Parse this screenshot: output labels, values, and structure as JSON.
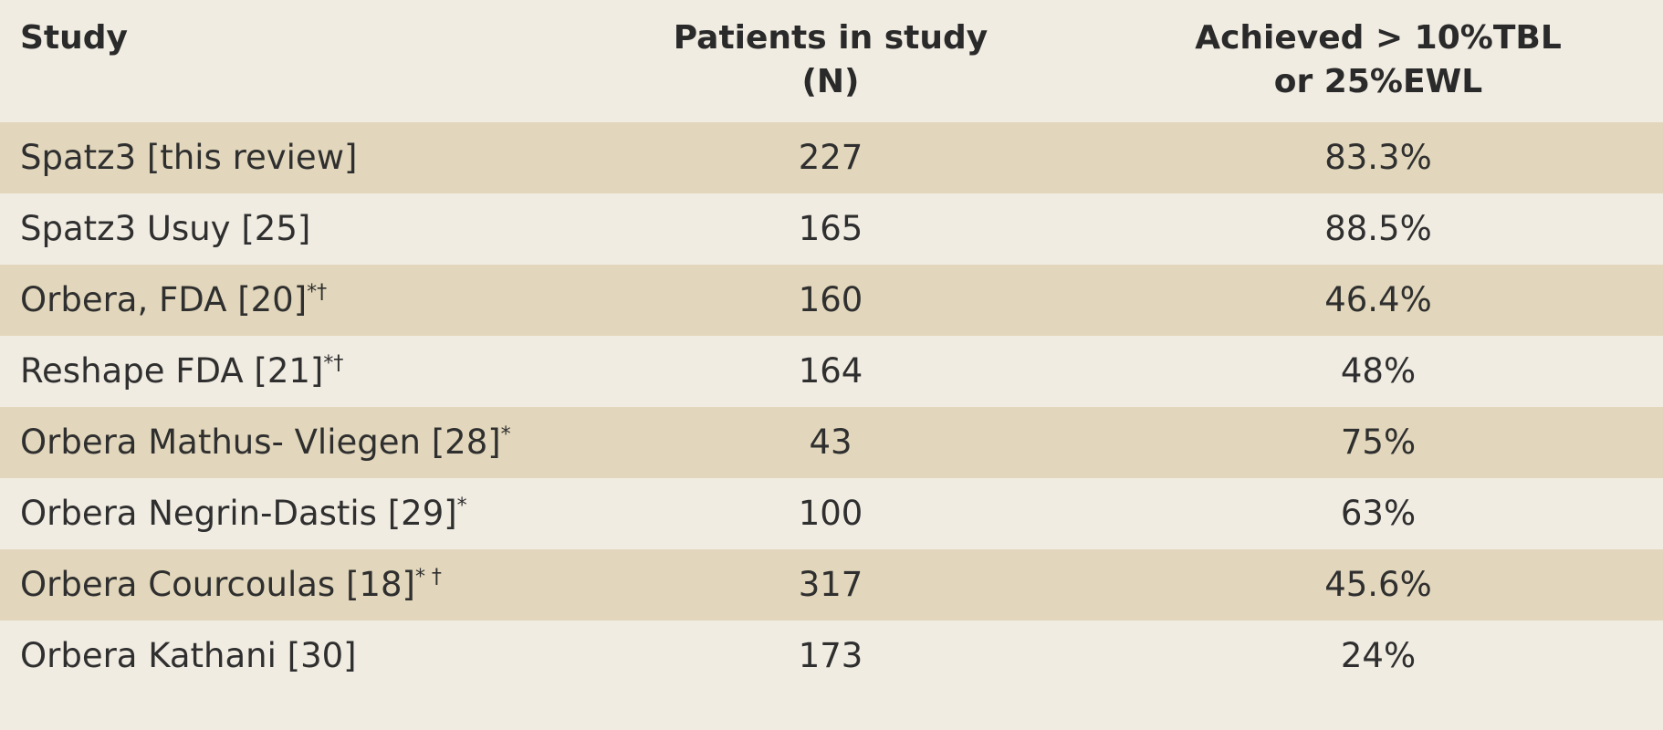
{
  "table": {
    "headers": {
      "study": "Study",
      "patients": "Patients in study (N)",
      "achieved_line1": "Achieved > 10%TBL",
      "achieved_line2": "or 25%EWL"
    },
    "rows": [
      {
        "study": "Spatz3 [this review]",
        "sup": "",
        "patients": "227",
        "achieved": "83.3%"
      },
      {
        "study": "Spatz3 Usuy [25]",
        "sup": "",
        "patients": "165",
        "achieved": "88.5%"
      },
      {
        "study": "Orbera, FDA [20]",
        "sup": "*†",
        "patients": "160",
        "achieved": "46.4%"
      },
      {
        "study": "Reshape FDA [21]",
        "sup": "*†",
        "patients": "164",
        "achieved": "48%"
      },
      {
        "study": "Orbera Mathus- Vliegen [28]",
        "sup": "*",
        "patients": "43",
        "achieved": "75%"
      },
      {
        "study": "Orbera Negrin-Dastis [29]",
        "sup": "*",
        "patients": "100",
        "achieved": "63%"
      },
      {
        "study": "Orbera Courcoulas [18]",
        "sup": "* †",
        "patients": "317",
        "achieved": "45.6%"
      },
      {
        "study": "Orbera Kathani [30]",
        "sup": "",
        "patients": "173",
        "achieved": "24%"
      }
    ]
  }
}
